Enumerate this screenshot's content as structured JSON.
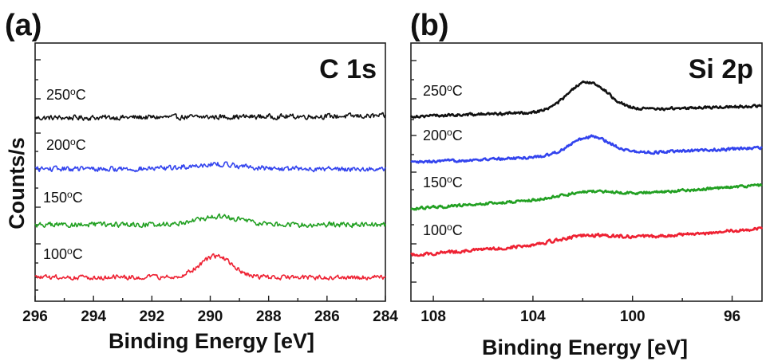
{
  "chart_data": [
    {
      "type": "line",
      "panel": "(a)",
      "title": "C 1s",
      "xlabel": "Binding Energy [eV]",
      "ylabel": "Counts/s",
      "xlim": [
        296,
        284
      ],
      "x_reversed": true,
      "xticks": [
        296,
        294,
        292,
        290,
        288,
        286,
        284
      ],
      "xtick_labels": [
        "296",
        "294",
        "292",
        "290",
        "288",
        "286",
        "284"
      ],
      "yticks_labeled": false,
      "series": [
        {
          "name": "250oC",
          "label": "250",
          "color": "#111111",
          "offset": 3,
          "peak_center": 290,
          "peak_height": 0.0,
          "peak_width": 0.6,
          "noise": 0.09,
          "slope": 0.05
        },
        {
          "name": "200oC",
          "label": "200",
          "color": "#3344ee",
          "offset": 2,
          "peak_center": 289.8,
          "peak_height": 0.12,
          "peak_width": 0.9,
          "noise": 0.09,
          "slope": 0.0
        },
        {
          "name": "150oC",
          "label": "150",
          "color": "#22a022",
          "offset": 1,
          "peak_center": 289.7,
          "peak_height": 0.2,
          "peak_width": 0.8,
          "noise": 0.09,
          "slope": 0.0
        },
        {
          "name": "100oC",
          "label": "100",
          "color": "#ee2233",
          "offset": 0,
          "peak_center": 289.8,
          "peak_height": 0.55,
          "peak_width": 0.55,
          "noise": 0.08,
          "slope": 0.0
        }
      ]
    },
    {
      "type": "line",
      "panel": "(b)",
      "title": "Si 2p",
      "xlabel": "Binding Energy [eV]",
      "ylabel": "",
      "xlim": [
        108.9,
        94.8
      ],
      "x_reversed": true,
      "xticks": [
        108,
        104,
        100,
        96
      ],
      "xtick_labels": [
        "108",
        "104",
        "100",
        "96"
      ],
      "yticks_labeled": false,
      "series": [
        {
          "name": "250oC",
          "label": "250",
          "color": "#111111",
          "offset": 3,
          "peak_center": 101.8,
          "peak_height": 0.55,
          "peak_width": 0.8,
          "noise": 0.035,
          "slope": 0.2
        },
        {
          "name": "200oC",
          "label": "200",
          "color": "#3344ee",
          "offset": 2,
          "peak_center": 101.7,
          "peak_height": 0.35,
          "peak_width": 0.8,
          "noise": 0.035,
          "slope": 0.28
        },
        {
          "name": "150oC",
          "label": "150",
          "color": "#22a022",
          "offset": 1,
          "peak_center": 101.8,
          "peak_height": 0.1,
          "peak_width": 1.0,
          "noise": 0.035,
          "slope": 0.45
        },
        {
          "name": "100oC",
          "label": "100",
          "color": "#ee2233",
          "offset": 0,
          "peak_center": 101.9,
          "peak_height": 0.12,
          "peak_width": 1.2,
          "noise": 0.04,
          "slope": 0.5
        }
      ]
    }
  ],
  "labels": {
    "degree_suffix": "C",
    "degree_mark": "o"
  }
}
